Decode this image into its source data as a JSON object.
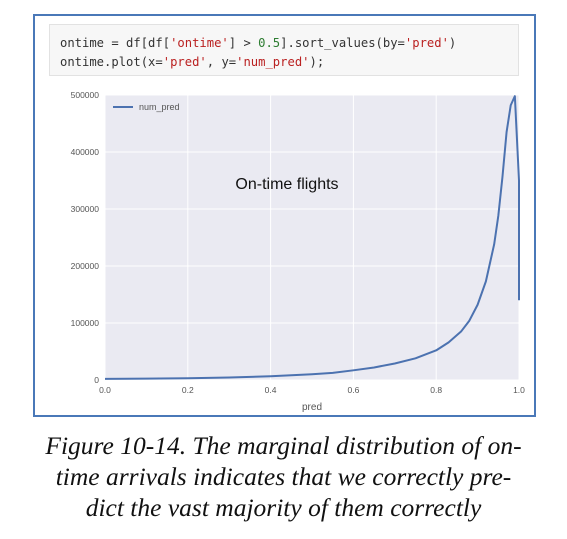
{
  "code": {
    "line1": {
      "pre": "ontime = df[df[",
      "str1": "'ontime'",
      "mid": "] > ",
      "num": "0.5",
      "mid2": "].sort_values(by=",
      "str2": "'pred'",
      "post": ")"
    },
    "line2": {
      "pre": "ontime.plot(x=",
      "str1": "'pred'",
      "mid": ", y=",
      "str2": "'num_pred'",
      "post": ");"
    }
  },
  "chart_data": {
    "type": "line",
    "title": "",
    "annotation": "On-time flights",
    "xlabel": "pred",
    "ylabel": "",
    "xlim": [
      0.0,
      1.0
    ],
    "ylim": [
      0,
      500000
    ],
    "x_ticks": [
      "0.0",
      "0.2",
      "0.4",
      "0.6",
      "0.8",
      "1.0"
    ],
    "y_ticks": [
      "0",
      "100000",
      "200000",
      "300000",
      "400000",
      "500000"
    ],
    "grid": true,
    "legend": "top-left",
    "series": [
      {
        "name": "num_pred",
        "color": "#4c72b0",
        "x": [
          0.0,
          0.1,
          0.2,
          0.3,
          0.4,
          0.5,
          0.55,
          0.6,
          0.65,
          0.7,
          0.75,
          0.8,
          0.83,
          0.86,
          0.88,
          0.9,
          0.92,
          0.94,
          0.95,
          0.96,
          0.97,
          0.98,
          0.99,
          1.0,
          1.0
        ],
        "y": [
          2000,
          2500,
          3000,
          4500,
          6500,
          10000,
          12500,
          17000,
          22000,
          29000,
          38000,
          52000,
          66000,
          85000,
          104000,
          132000,
          173000,
          238000,
          288000,
          356000,
          435000,
          482000,
          498000,
          350000,
          140000
        ]
      }
    ]
  },
  "caption": {
    "label": "Figure 10-14.",
    "line1": "The marginal distribution of on-",
    "line2": "time arrivals indicates that we correctly pre-",
    "line3": "dict the vast majority of them correctly"
  }
}
